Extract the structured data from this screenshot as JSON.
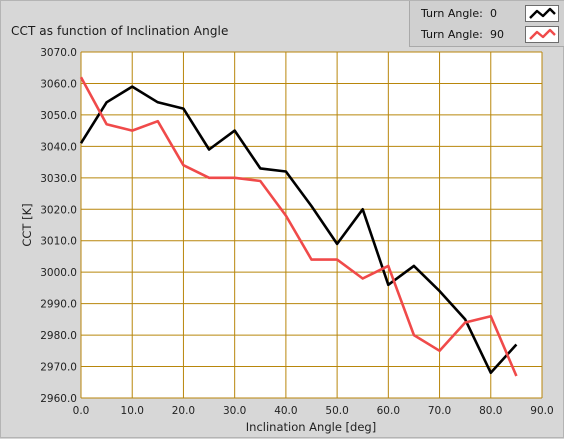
{
  "chart_data": {
    "type": "line",
    "title": "CCT as function of Inclination Angle",
    "xlabel": "Inclination Angle [deg]",
    "ylabel": "CCT [K]",
    "xlim": [
      0,
      90
    ],
    "ylim": [
      2960,
      3070
    ],
    "x_ticks": [
      "0.0",
      "10.0",
      "20.0",
      "30.0",
      "40.0",
      "50.0",
      "60.0",
      "70.0",
      "80.0",
      "90.0"
    ],
    "y_ticks": [
      "2960.0",
      "2970.0",
      "2980.0",
      "2990.0",
      "3000.0",
      "3010.0",
      "3020.0",
      "3030.0",
      "3040.0",
      "3050.0",
      "3060.0",
      "3070.0"
    ],
    "grid": true,
    "legend_position": "top-right",
    "series": [
      {
        "name": "Turn Angle:",
        "value": "0",
        "color": "#000000",
        "x": [
          0,
          5,
          10,
          15,
          20,
          25,
          30,
          35,
          40,
          45,
          50,
          55,
          60,
          65,
          70,
          75,
          80,
          85
        ],
        "y": [
          3041,
          3054,
          3059,
          3054,
          3052,
          3039,
          3045,
          3033,
          3032,
          3021,
          3009,
          3020,
          2996,
          3002,
          2994,
          2985,
          2968,
          2977
        ]
      },
      {
        "name": "Turn Angle:",
        "value": "90",
        "color": "#f04a4a",
        "x": [
          0,
          5,
          10,
          15,
          20,
          25,
          30,
          35,
          40,
          45,
          50,
          55,
          60,
          65,
          70,
          75,
          80,
          85
        ],
        "y": [
          3062,
          3047,
          3045,
          3048,
          3034,
          3030,
          3030,
          3029,
          3018,
          3004,
          3004,
          2998,
          3002,
          2980,
          2975,
          2984,
          2986,
          2967
        ]
      }
    ]
  },
  "colors": {
    "background": "#d7d7d7",
    "plot_background": "#ffffff",
    "grid": "#b8860b"
  }
}
